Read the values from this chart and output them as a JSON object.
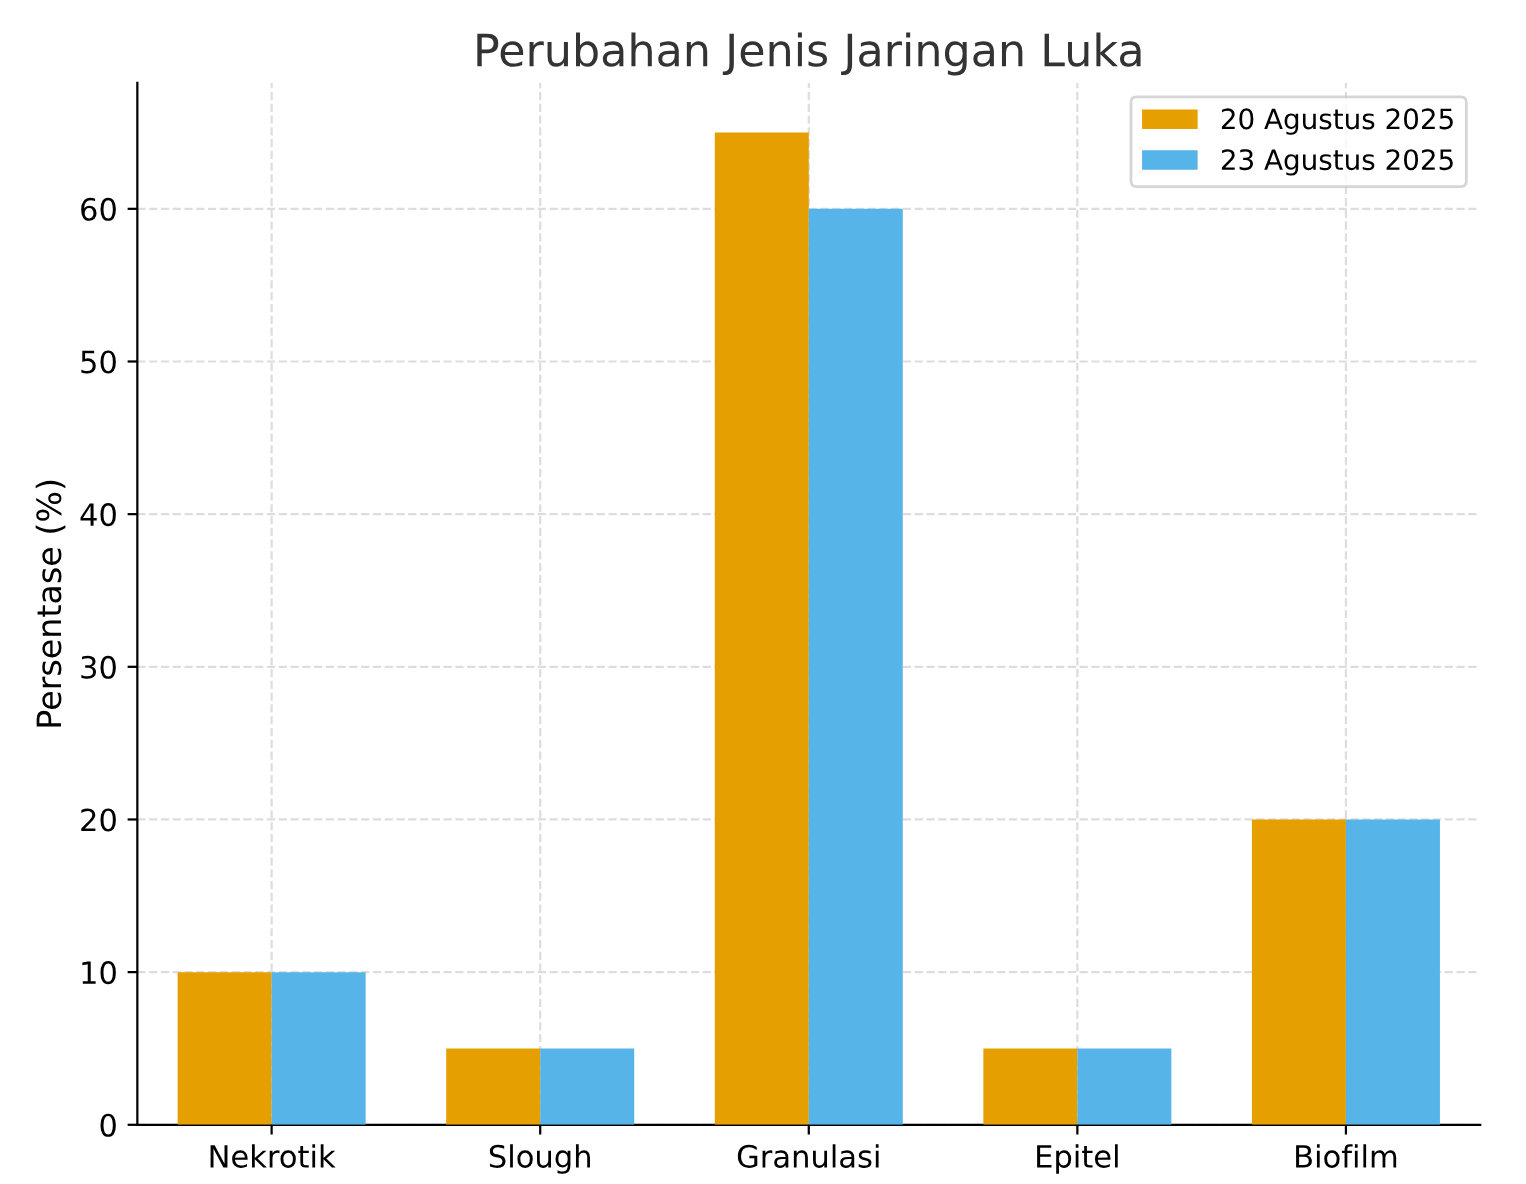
{
  "chart_data": {
    "type": "bar",
    "title": "Perubahan Jenis Jaringan Luka",
    "ylabel": "Persentase (%)",
    "categories": [
      "Nekrotik",
      "Slough",
      "Granulasi",
      "Epitel",
      "Biofilm"
    ],
    "series": [
      {
        "name": "20 Agustus 2025",
        "color": "#e69f00",
        "values": [
          10,
          5,
          65,
          5,
          20
        ]
      },
      {
        "name": "23 Agustus 2025",
        "color": "#56b4e9",
        "values": [
          10,
          5,
          60,
          5,
          20
        ]
      }
    ],
    "ylim": [
      0,
      68.25
    ],
    "yticks": [
      0,
      10,
      20,
      30,
      40,
      50,
      60
    ],
    "grid": true,
    "legend": "top right"
  }
}
